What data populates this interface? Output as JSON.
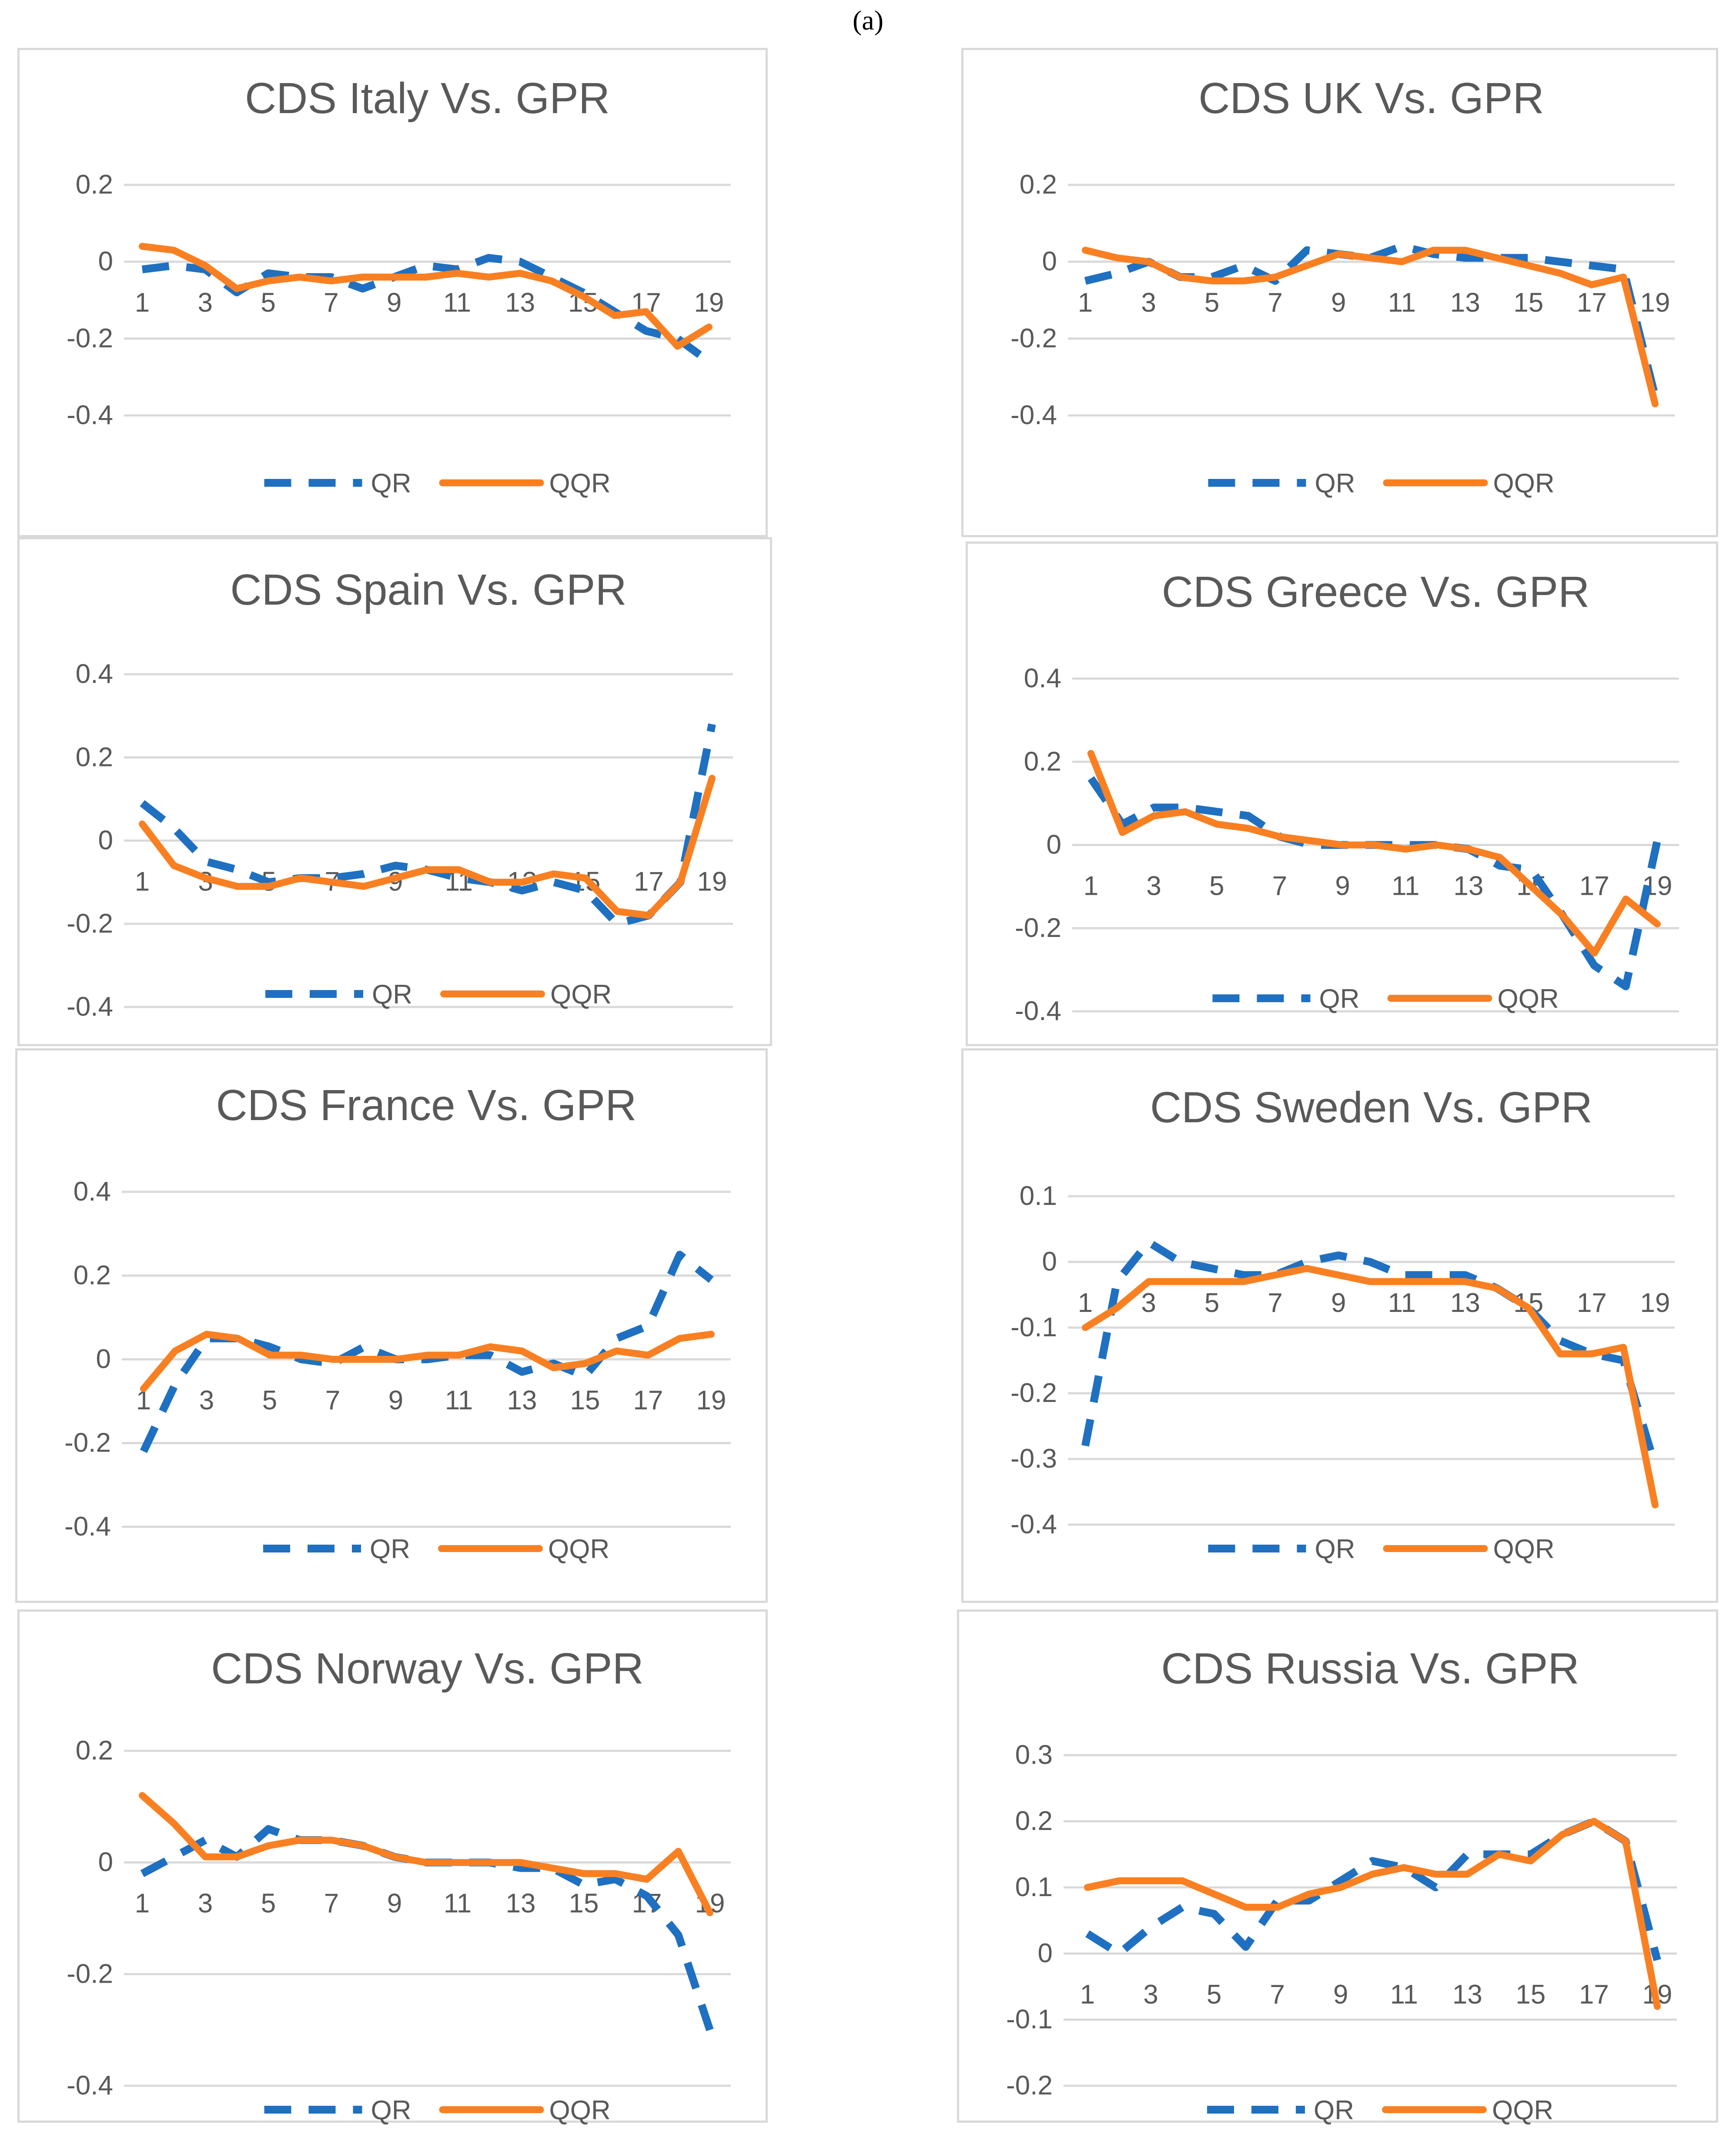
{
  "figure_label": "(a)",
  "chart_data": [
    {
      "type": "line",
      "title": "CDS Italy Vs. GPR",
      "x": [
        1,
        2,
        3,
        4,
        5,
        6,
        7,
        8,
        9,
        10,
        11,
        12,
        13,
        14,
        15,
        16,
        17,
        18,
        19
      ],
      "xticks": [
        "1",
        "3",
        "5",
        "7",
        "9",
        "11",
        "13",
        "15",
        "17",
        "19"
      ],
      "yticks": [
        "0.2",
        "0",
        "-0.2",
        "-0.4"
      ],
      "ylim": [
        -0.4,
        0.2
      ],
      "legend": "bottom",
      "series": [
        {
          "name": "QR",
          "values": [
            -0.02,
            -0.01,
            -0.02,
            -0.08,
            -0.03,
            -0.04,
            -0.04,
            -0.07,
            -0.04,
            -0.01,
            -0.02,
            0.01,
            0.0,
            -0.04,
            -0.08,
            -0.13,
            -0.18,
            -0.2,
            -0.26
          ]
        },
        {
          "name": "QQR",
          "values": [
            0.04,
            0.03,
            -0.01,
            -0.07,
            -0.05,
            -0.04,
            -0.05,
            -0.04,
            -0.04,
            -0.04,
            -0.03,
            -0.04,
            -0.03,
            -0.05,
            -0.09,
            -0.14,
            -0.13,
            -0.22,
            -0.17
          ]
        }
      ]
    },
    {
      "type": "line",
      "title": "CDS UK Vs. GPR",
      "x": [
        1,
        2,
        3,
        4,
        5,
        6,
        7,
        8,
        9,
        10,
        11,
        12,
        13,
        14,
        15,
        16,
        17,
        18,
        19
      ],
      "xticks": [
        "1",
        "3",
        "5",
        "7",
        "9",
        "11",
        "13",
        "15",
        "17",
        "19"
      ],
      "yticks": [
        "0.2",
        "0",
        "-0.2",
        "-0.4"
      ],
      "ylim": [
        -0.4,
        0.2
      ],
      "legend": "bottom",
      "series": [
        {
          "name": "QR",
          "values": [
            -0.05,
            -0.03,
            0.0,
            -0.04,
            -0.04,
            -0.01,
            -0.05,
            0.03,
            0.02,
            0.01,
            0.04,
            0.02,
            0.01,
            0.01,
            0.01,
            0.0,
            -0.01,
            -0.02,
            -0.35
          ]
        },
        {
          "name": "QQR",
          "values": [
            0.03,
            0.01,
            0.0,
            -0.04,
            -0.05,
            -0.05,
            -0.04,
            -0.01,
            0.02,
            0.01,
            0.0,
            0.03,
            0.03,
            0.01,
            -0.01,
            -0.03,
            -0.06,
            -0.04,
            -0.37
          ]
        }
      ]
    },
    {
      "type": "line",
      "title": "CDS Spain Vs. GPR",
      "x": [
        1,
        2,
        3,
        4,
        5,
        6,
        7,
        8,
        9,
        10,
        11,
        12,
        13,
        14,
        15,
        16,
        17,
        18,
        19
      ],
      "xticks": [
        "1",
        "3",
        "5",
        "7",
        "9",
        "11",
        "13",
        "15",
        "17",
        "19"
      ],
      "yticks": [
        "0.4",
        "0.2",
        "0",
        "-0.2",
        "-0.4"
      ],
      "ylim": [
        -0.4,
        0.4
      ],
      "legend": "bottom",
      "series": [
        {
          "name": "QR",
          "values": [
            0.09,
            0.03,
            -0.05,
            -0.07,
            -0.1,
            -0.09,
            -0.09,
            -0.08,
            -0.06,
            -0.07,
            -0.09,
            -0.1,
            -0.12,
            -0.1,
            -0.12,
            -0.2,
            -0.18,
            -0.1,
            0.28
          ]
        },
        {
          "name": "QQR",
          "values": [
            0.04,
            -0.06,
            -0.09,
            -0.11,
            -0.11,
            -0.09,
            -0.1,
            -0.11,
            -0.09,
            -0.07,
            -0.07,
            -0.1,
            -0.1,
            -0.08,
            -0.09,
            -0.17,
            -0.18,
            -0.1,
            0.15
          ]
        }
      ]
    },
    {
      "type": "line",
      "title": "CDS Greece Vs. GPR",
      "x": [
        1,
        2,
        3,
        4,
        5,
        6,
        7,
        8,
        9,
        10,
        11,
        12,
        13,
        14,
        15,
        16,
        17,
        18,
        19
      ],
      "xticks": [
        "1",
        "3",
        "5",
        "7",
        "9",
        "11",
        "13",
        "15",
        "17",
        "19"
      ],
      "yticks": [
        "0.4",
        "0.2",
        "0",
        "-0.2",
        "-0.4"
      ],
      "ylim": [
        -0.4,
        0.4
      ],
      "legend": "bottom",
      "series": [
        {
          "name": "QR",
          "values": [
            0.16,
            0.05,
            0.09,
            0.09,
            0.08,
            0.07,
            0.02,
            0.0,
            0.0,
            0.0,
            0.0,
            0.0,
            -0.01,
            -0.05,
            -0.06,
            -0.17,
            -0.29,
            -0.34,
            0.01
          ]
        },
        {
          "name": "QQR",
          "values": [
            0.22,
            0.03,
            0.07,
            0.08,
            0.05,
            0.04,
            0.02,
            0.01,
            0.0,
            0.0,
            -0.01,
            0.0,
            -0.01,
            -0.03,
            -0.1,
            -0.17,
            -0.26,
            -0.13,
            -0.19
          ]
        }
      ]
    },
    {
      "type": "line",
      "title": "CDS France Vs. GPR",
      "x": [
        1,
        2,
        3,
        4,
        5,
        6,
        7,
        8,
        9,
        10,
        11,
        12,
        13,
        14,
        15,
        16,
        17,
        18,
        19
      ],
      "xticks": [
        "1",
        "3",
        "5",
        "7",
        "9",
        "11",
        "13",
        "15",
        "17",
        "19"
      ],
      "yticks": [
        "0.4",
        "0.2",
        "0",
        "-0.2",
        "-0.4"
      ],
      "ylim": [
        -0.4,
        0.4
      ],
      "legend": "bottom",
      "series": [
        {
          "name": "QR",
          "values": [
            -0.22,
            -0.06,
            0.05,
            0.05,
            0.03,
            0.0,
            -0.01,
            0.03,
            0.0,
            0.0,
            0.01,
            0.01,
            -0.03,
            -0.01,
            -0.04,
            0.05,
            0.08,
            0.25,
            0.19
          ]
        },
        {
          "name": "QQR",
          "values": [
            -0.07,
            0.02,
            0.06,
            0.05,
            0.01,
            0.01,
            0.0,
            0.0,
            0.0,
            0.01,
            0.01,
            0.03,
            0.02,
            -0.02,
            -0.01,
            0.02,
            0.01,
            0.05,
            0.06
          ]
        }
      ]
    },
    {
      "type": "line",
      "title": "CDS Sweden Vs. GPR",
      "x": [
        1,
        2,
        3,
        4,
        5,
        6,
        7,
        8,
        9,
        10,
        11,
        12,
        13,
        14,
        15,
        16,
        17,
        18,
        19
      ],
      "xticks": [
        "1",
        "3",
        "5",
        "7",
        "9",
        "11",
        "13",
        "15",
        "17",
        "19"
      ],
      "yticks": [
        "0.1",
        "0",
        "-0.1",
        "-0.2",
        "-0.3",
        "-0.4"
      ],
      "ylim": [
        -0.4,
        0.1
      ],
      "legend": "bottom",
      "series": [
        {
          "name": "QR",
          "values": [
            -0.28,
            -0.03,
            0.03,
            0.0,
            -0.01,
            -0.02,
            -0.02,
            0.0,
            0.01,
            0.0,
            -0.02,
            -0.02,
            -0.02,
            -0.04,
            -0.07,
            -0.12,
            -0.14,
            -0.15,
            -0.31
          ]
        },
        {
          "name": "QQR",
          "values": [
            -0.1,
            -0.07,
            -0.03,
            -0.03,
            -0.03,
            -0.03,
            -0.02,
            -0.01,
            -0.02,
            -0.03,
            -0.03,
            -0.03,
            -0.03,
            -0.04,
            -0.07,
            -0.14,
            -0.14,
            -0.13,
            -0.37
          ]
        }
      ]
    },
    {
      "type": "line",
      "title": "CDS Norway Vs. GPR",
      "x": [
        1,
        2,
        3,
        4,
        5,
        6,
        7,
        8,
        9,
        10,
        11,
        12,
        13,
        14,
        15,
        16,
        17,
        18,
        19
      ],
      "xticks": [
        "1",
        "3",
        "5",
        "7",
        "9",
        "11",
        "13",
        "15",
        "17",
        "19"
      ],
      "yticks": [
        "0.2",
        "0",
        "-0.2",
        "-0.4"
      ],
      "ylim": [
        -0.4,
        0.2
      ],
      "legend": "bottom",
      "series": [
        {
          "name": "QR",
          "values": [
            -0.02,
            0.01,
            0.04,
            0.01,
            0.06,
            0.04,
            0.04,
            0.03,
            0.01,
            0.0,
            0.0,
            0.0,
            -0.01,
            -0.01,
            -0.04,
            -0.03,
            -0.06,
            -0.13,
            -0.3
          ]
        },
        {
          "name": "QQR",
          "values": [
            0.12,
            0.07,
            0.01,
            0.01,
            0.03,
            0.04,
            0.04,
            0.03,
            0.01,
            0.0,
            0.0,
            0.0,
            0.0,
            -0.01,
            -0.02,
            -0.02,
            -0.03,
            0.02,
            -0.09
          ]
        }
      ]
    },
    {
      "type": "line",
      "title": "CDS Russia Vs. GPR",
      "x": [
        1,
        2,
        3,
        4,
        5,
        6,
        7,
        8,
        9,
        10,
        11,
        12,
        13,
        14,
        15,
        16,
        17,
        18,
        19
      ],
      "xticks": [
        "1",
        "3",
        "5",
        "7",
        "9",
        "11",
        "13",
        "15",
        "17",
        "19"
      ],
      "yticks": [
        "0.3",
        "0.2",
        "0.1",
        "0",
        "-0.1",
        "-0.2"
      ],
      "ylim": [
        -0.2,
        0.3
      ],
      "legend": "bottom",
      "series": [
        {
          "name": "QR",
          "values": [
            0.03,
            0.0,
            0.04,
            0.07,
            0.06,
            0.01,
            0.08,
            0.08,
            0.11,
            0.14,
            0.13,
            0.1,
            0.15,
            0.15,
            0.15,
            0.18,
            0.2,
            0.17,
            -0.01
          ]
        },
        {
          "name": "QQR",
          "values": [
            0.1,
            0.11,
            0.11,
            0.11,
            0.09,
            0.07,
            0.07,
            0.09,
            0.1,
            0.12,
            0.13,
            0.12,
            0.12,
            0.15,
            0.14,
            0.18,
            0.2,
            0.17,
            -0.08
          ]
        }
      ]
    }
  ]
}
